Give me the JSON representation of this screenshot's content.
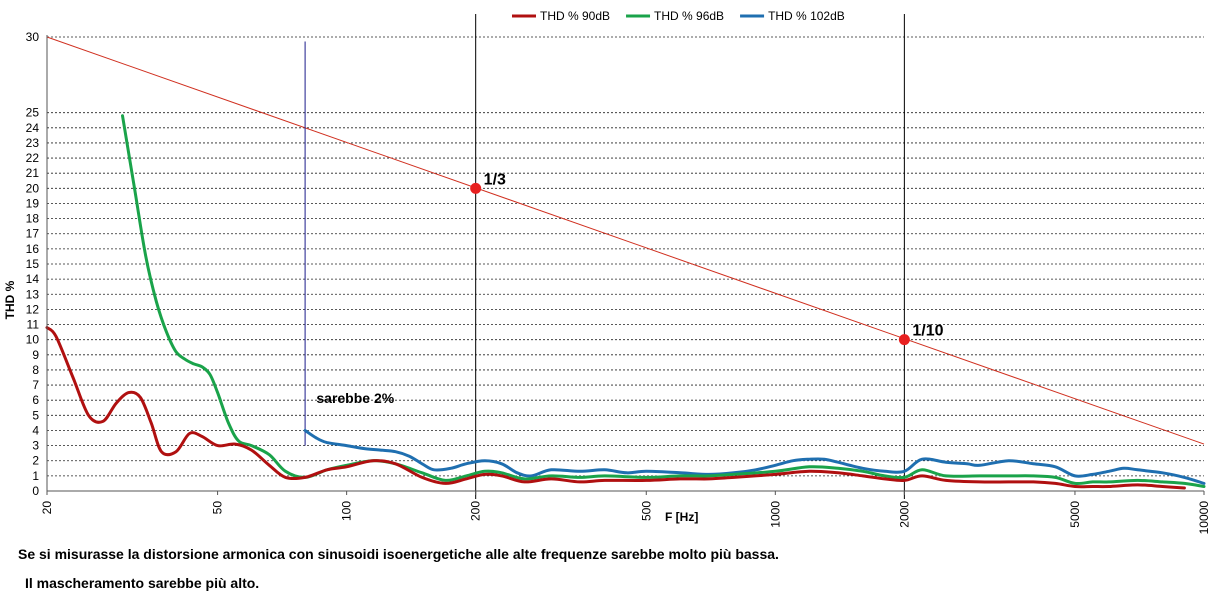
{
  "chart_data": {
    "type": "line",
    "title": "",
    "xlabel": "F [Hz]",
    "ylabel": "THD %",
    "x_scale": "log",
    "xlim": [
      20,
      10000
    ],
    "ylim": [
      0,
      30
    ],
    "x_ticks": [
      20,
      50,
      100,
      200,
      500,
      1000,
      2000,
      5000,
      10000
    ],
    "y_ticks": [
      0,
      1,
      2,
      3,
      4,
      5,
      6,
      7,
      8,
      9,
      10,
      11,
      12,
      13,
      14,
      15,
      16,
      17,
      18,
      19,
      20,
      21,
      22,
      23,
      24,
      25,
      30
    ],
    "grid": "horizontal dashed",
    "legend_position": "top",
    "series": [
      {
        "name": "THD % 90dB",
        "color": "#b01010",
        "x": [
          20,
          21,
          23,
          25,
          27,
          29,
          31,
          33,
          35,
          37,
          40,
          43,
          46,
          50,
          55,
          60,
          66,
          72,
          80,
          90,
          100,
          115,
          130,
          150,
          170,
          190,
          210,
          230,
          260,
          300,
          350,
          400,
          500,
          600,
          700,
          800,
          1000,
          1200,
          1400,
          1600,
          1800,
          2000,
          2200,
          2500,
          3000,
          3500,
          4000,
          4500,
          5000,
          5500,
          6000,
          7000,
          8000,
          9000
        ],
        "y": [
          10.8,
          10.2,
          7.5,
          5.0,
          4.6,
          5.8,
          6.5,
          6.2,
          4.5,
          2.6,
          2.6,
          3.8,
          3.6,
          3.0,
          3.1,
          2.7,
          1.7,
          0.9,
          0.9,
          1.4,
          1.6,
          2.0,
          1.8,
          0.9,
          0.5,
          0.8,
          1.1,
          1.0,
          0.6,
          0.8,
          0.6,
          0.7,
          0.7,
          0.8,
          0.8,
          0.9,
          1.1,
          1.3,
          1.2,
          1.0,
          0.8,
          0.7,
          1.0,
          0.7,
          0.6,
          0.6,
          0.6,
          0.5,
          0.3,
          0.3,
          0.3,
          0.4,
          0.3,
          0.2
        ]
      },
      {
        "name": "THD % 96dB",
        "color": "#1aa34a",
        "x": [
          30,
          32,
          34,
          36,
          38,
          40,
          42,
          44,
          46,
          48,
          50,
          53,
          56,
          60,
          66,
          72,
          80,
          90,
          100,
          115,
          130,
          150,
          170,
          190,
          210,
          230,
          260,
          300,
          350,
          400,
          500,
          600,
          700,
          800,
          1000,
          1200,
          1400,
          1600,
          1800,
          2000,
          2200,
          2500,
          3000,
          3500,
          4000,
          4500,
          5000,
          5500,
          6000,
          7000,
          8000,
          9000,
          10000
        ],
        "y": [
          24.8,
          20.0,
          15.5,
          12.5,
          10.5,
          9.2,
          8.7,
          8.4,
          8.2,
          7.7,
          6.5,
          4.5,
          3.3,
          3.0,
          2.4,
          1.3,
          0.9,
          1.4,
          1.7,
          2.0,
          1.8,
          1.2,
          0.7,
          1.0,
          1.3,
          1.2,
          0.8,
          1.0,
          0.9,
          1.0,
          0.9,
          1.0,
          1.0,
          1.1,
          1.3,
          1.6,
          1.5,
          1.3,
          1.0,
          0.9,
          1.4,
          1.0,
          1.0,
          1.0,
          1.0,
          0.9,
          0.5,
          0.6,
          0.6,
          0.7,
          0.6,
          0.5,
          0.3
        ]
      },
      {
        "name": "THD % 102dB",
        "color": "#1f6fb0",
        "x": [
          80,
          85,
          90,
          100,
          110,
          120,
          130,
          140,
          150,
          160,
          175,
          190,
          210,
          230,
          250,
          270,
          300,
          350,
          400,
          450,
          500,
          600,
          700,
          800,
          900,
          1000,
          1100,
          1200,
          1300,
          1400,
          1600,
          1800,
          2000,
          2200,
          2500,
          2800,
          3000,
          3500,
          4000,
          4500,
          5000,
          5500,
          6000,
          6500,
          7000,
          8000,
          9000,
          10000
        ],
        "y": [
          4.0,
          3.5,
          3.2,
          3.0,
          2.8,
          2.7,
          2.6,
          2.3,
          1.8,
          1.4,
          1.5,
          1.8,
          2.0,
          1.8,
          1.2,
          1.0,
          1.4,
          1.3,
          1.4,
          1.2,
          1.3,
          1.2,
          1.1,
          1.2,
          1.4,
          1.7,
          2.0,
          2.1,
          2.1,
          1.9,
          1.5,
          1.3,
          1.3,
          2.1,
          1.9,
          1.8,
          1.7,
          2.0,
          1.8,
          1.6,
          1.0,
          1.1,
          1.3,
          1.5,
          1.4,
          1.2,
          0.9,
          0.5
        ]
      }
    ],
    "annotations": {
      "limit_line": {
        "x": [
          20,
          10000
        ],
        "y": [
          30,
          3.1
        ],
        "color": "#d03020"
      },
      "marker_line": {
        "x": 80,
        "y": [
          3.0,
          29.7
        ],
        "color": "#1a1a8a"
      },
      "points": [
        {
          "x": 200,
          "y": 20,
          "label": "1/3",
          "color": "#e82020"
        },
        {
          "x": 2000,
          "y": 10,
          "label": "1/10",
          "color": "#e82020"
        }
      ],
      "marker_text": {
        "x": 85,
        "y": 5.8,
        "label": "sarebbe 2%"
      }
    }
  },
  "captions": {
    "line1": "Se si misurasse la distorsione armonica con sinusoidi isoenergetiche  alle alte frequenze sarebbe molto più bassa.",
    "line2": "Il mascheramento sarebbe più alto."
  }
}
